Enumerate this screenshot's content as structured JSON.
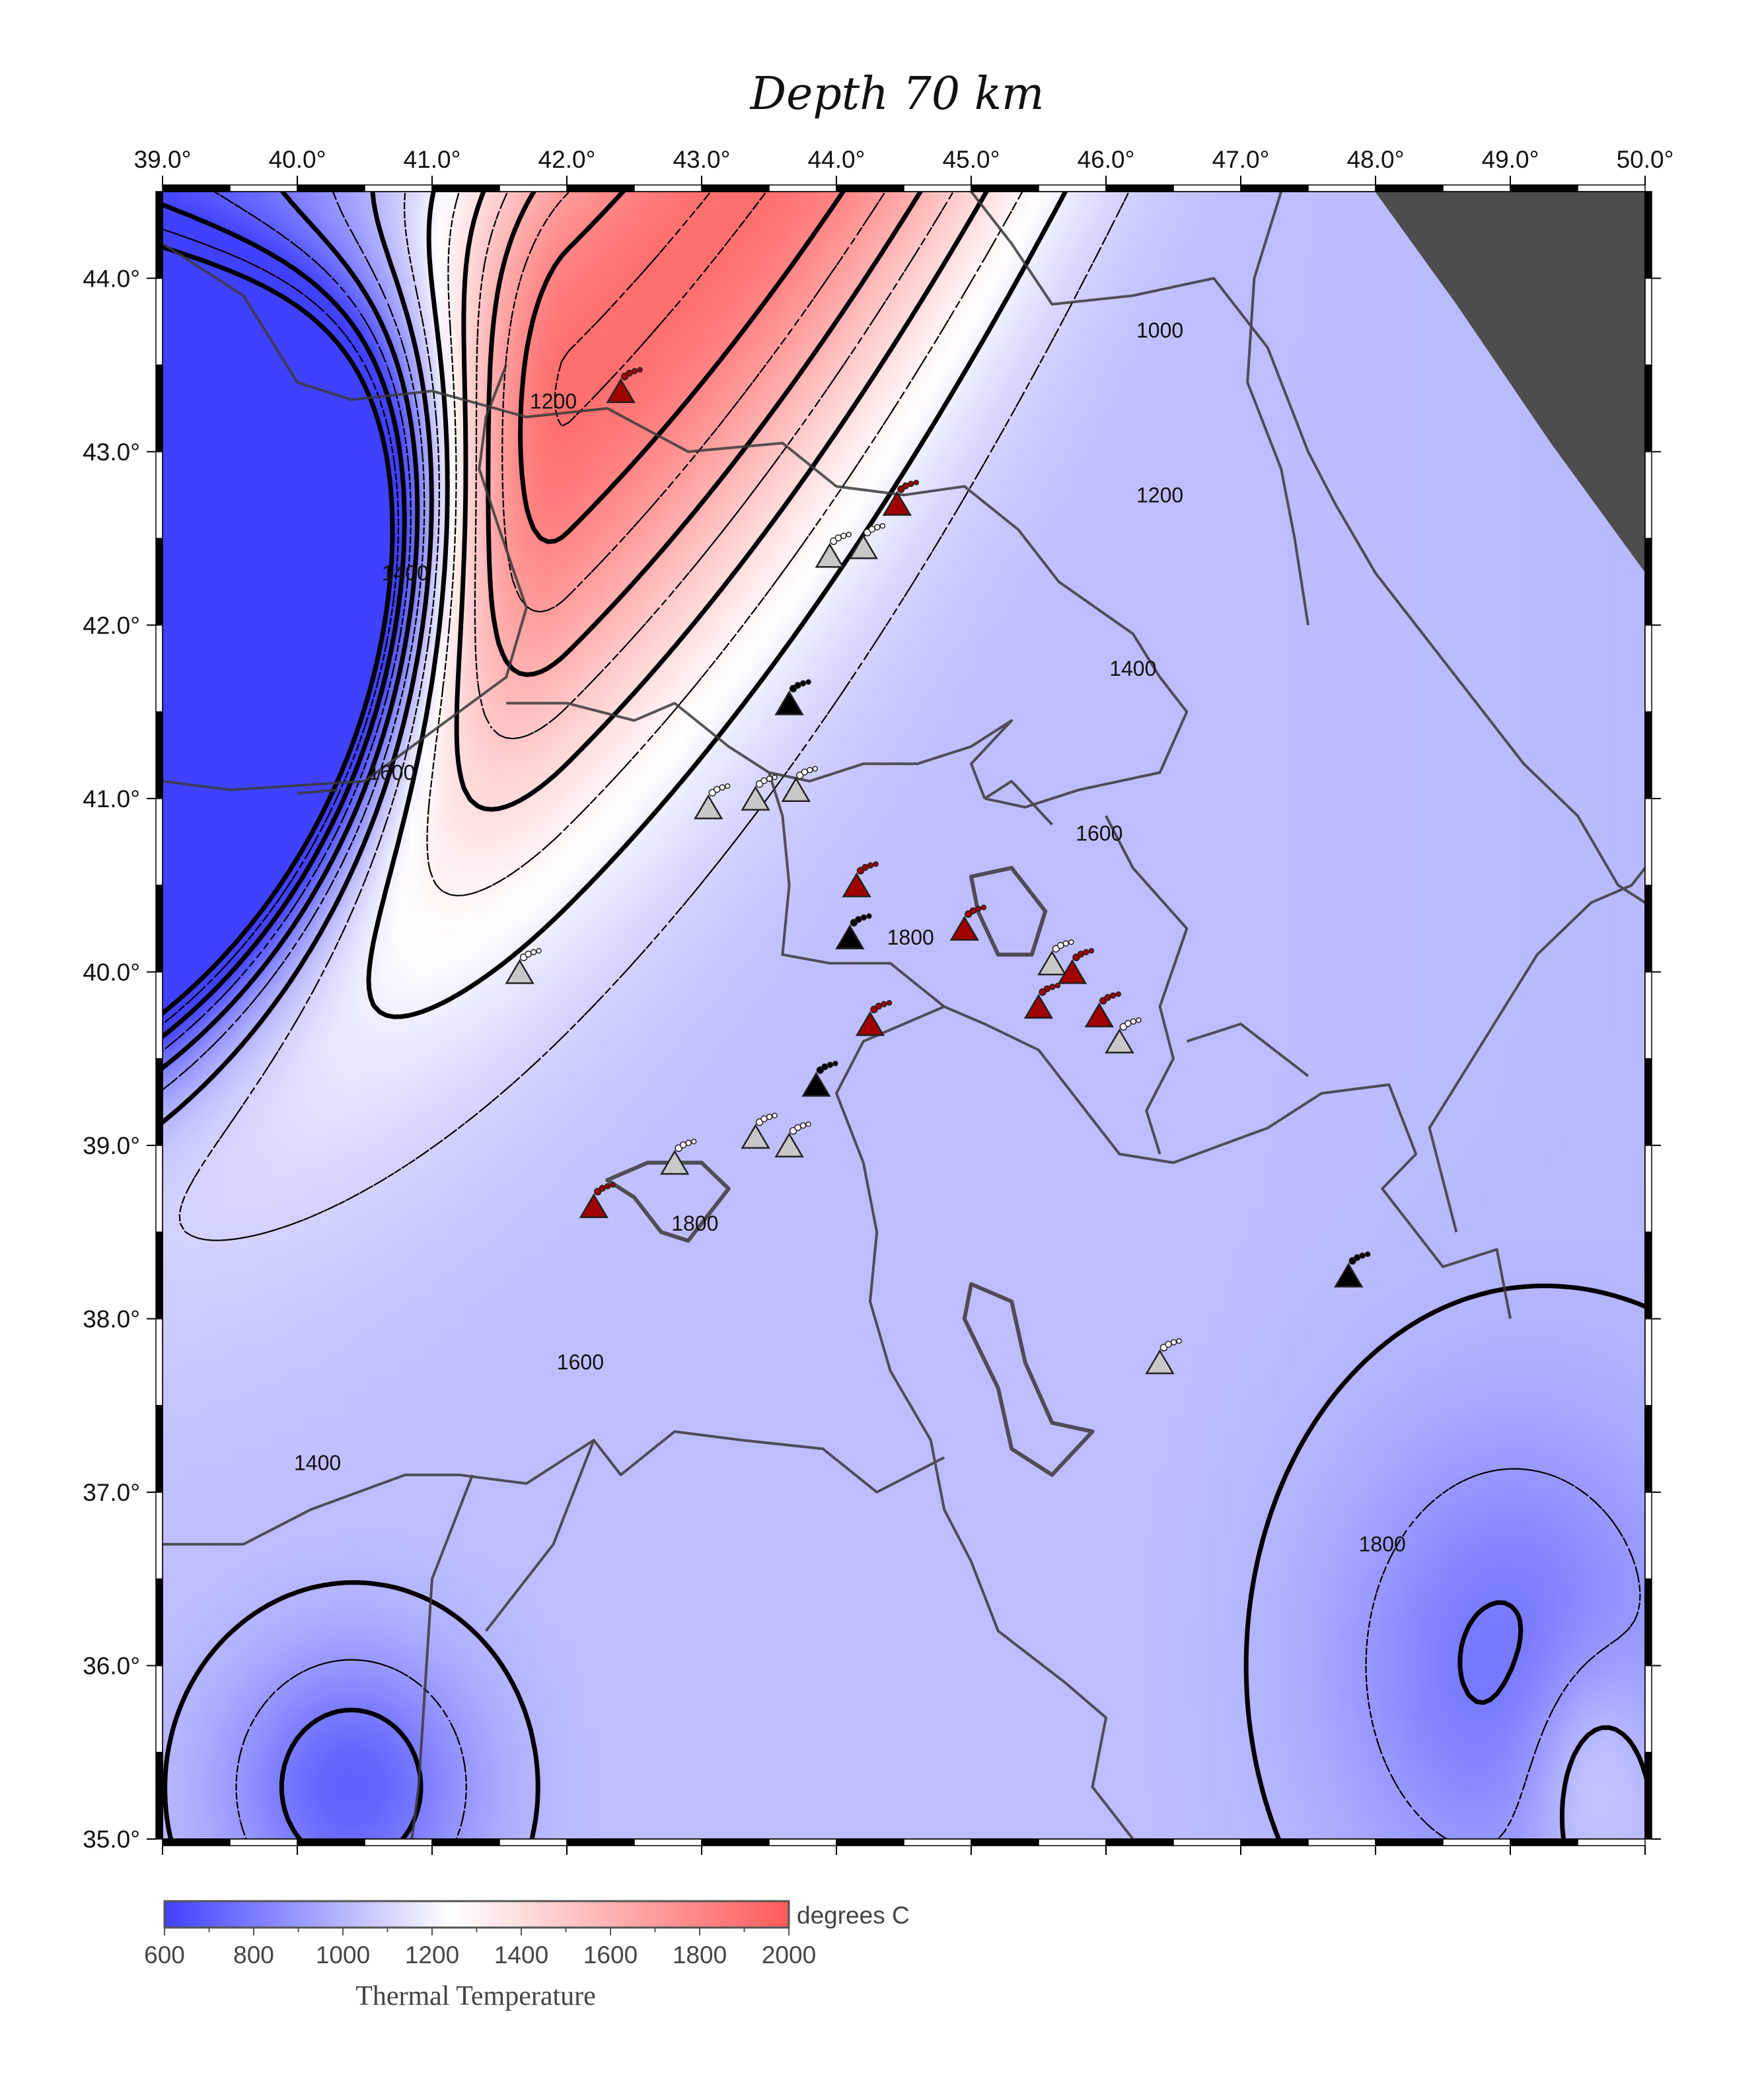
{
  "title": "Depth 70 km",
  "map": {
    "lon_range": [
      39.0,
      50.0
    ],
    "lat_range": [
      35.0,
      44.5
    ],
    "lon_ticks": [
      "39.0°",
      "40.0°",
      "41.0°",
      "42.0°",
      "43.0°",
      "44.0°",
      "45.0°",
      "46.0°",
      "47.0°",
      "48.0°",
      "49.0°",
      "50.0°"
    ],
    "lat_ticks": [
      "35.0°",
      "36.0°",
      "37.0°",
      "38.0°",
      "39.0°",
      "40.0°",
      "41.0°",
      "42.0°",
      "43.0°",
      "44.0°"
    ],
    "no_data_color": "#4d4d4d"
  },
  "colorbar": {
    "unit": "degrees C",
    "caption": "Thermal Temperature",
    "ticks": [
      "600",
      "800",
      "1000",
      "1200",
      "1400",
      "1600",
      "1800",
      "2000"
    ],
    "colors": {
      "low": "#4040ff",
      "mid": "#ffffff",
      "high": "#ff5a5a"
    }
  },
  "contours": {
    "major_levels": [
      1000,
      1200,
      1400,
      1600,
      1800
    ],
    "labels": [
      {
        "text": "1000",
        "lon": 46.4,
        "lat": 43.7
      },
      {
        "text": "1200",
        "lon": 41.9,
        "lat": 43.29
      },
      {
        "text": "1200",
        "lon": 46.4,
        "lat": 42.75
      },
      {
        "text": "1400",
        "lon": 40.8,
        "lat": 42.3
      },
      {
        "text": "1400",
        "lon": 46.2,
        "lat": 41.75
      },
      {
        "text": "1600",
        "lon": 40.7,
        "lat": 41.15
      },
      {
        "text": "1600",
        "lon": 45.95,
        "lat": 40.8
      },
      {
        "text": "1800",
        "lon": 44.55,
        "lat": 40.2
      },
      {
        "text": "1800",
        "lon": 42.95,
        "lat": 38.55
      },
      {
        "text": "1600",
        "lon": 42.1,
        "lat": 37.75
      },
      {
        "text": "1400",
        "lon": 40.15,
        "lat": 37.17
      },
      {
        "text": "1800",
        "lon": 48.05,
        "lat": 36.7
      }
    ]
  },
  "volcanoes": [
    {
      "lon": 42.4,
      "lat": 43.35,
      "type": "red"
    },
    {
      "lon": 44.45,
      "lat": 42.7,
      "type": "red"
    },
    {
      "lon": 43.95,
      "lat": 42.4,
      "type": "gray"
    },
    {
      "lon": 44.2,
      "lat": 42.45,
      "type": "gray"
    },
    {
      "lon": 43.65,
      "lat": 41.55,
      "type": "black"
    },
    {
      "lon": 43.05,
      "lat": 40.95,
      "type": "gray"
    },
    {
      "lon": 43.4,
      "lat": 41.0,
      "type": "gray"
    },
    {
      "lon": 43.7,
      "lat": 41.05,
      "type": "gray"
    },
    {
      "lon": 44.15,
      "lat": 40.5,
      "type": "red"
    },
    {
      "lon": 44.95,
      "lat": 40.25,
      "type": "red"
    },
    {
      "lon": 44.1,
      "lat": 40.2,
      "type": "black"
    },
    {
      "lon": 41.65,
      "lat": 40.0,
      "type": "gray"
    },
    {
      "lon": 45.6,
      "lat": 40.05,
      "type": "gray"
    },
    {
      "lon": 45.75,
      "lat": 40.0,
      "type": "red"
    },
    {
      "lon": 45.5,
      "lat": 39.8,
      "type": "red"
    },
    {
      "lon": 45.95,
      "lat": 39.75,
      "type": "red"
    },
    {
      "lon": 46.1,
      "lat": 39.6,
      "type": "gray"
    },
    {
      "lon": 44.25,
      "lat": 39.7,
      "type": "red"
    },
    {
      "lon": 43.85,
      "lat": 39.35,
      "type": "black"
    },
    {
      "lon": 42.8,
      "lat": 38.9,
      "type": "gray"
    },
    {
      "lon": 43.4,
      "lat": 39.05,
      "type": "gray"
    },
    {
      "lon": 43.65,
      "lat": 39.0,
      "type": "gray"
    },
    {
      "lon": 42.2,
      "lat": 38.65,
      "type": "red"
    },
    {
      "lon": 47.8,
      "lat": 38.25,
      "type": "black"
    },
    {
      "lon": 46.4,
      "lat": 37.75,
      "type": "gray"
    }
  ],
  "volcano_colors": {
    "red": "#a00000",
    "black": "#000000",
    "gray": "#c8c8c8"
  }
}
